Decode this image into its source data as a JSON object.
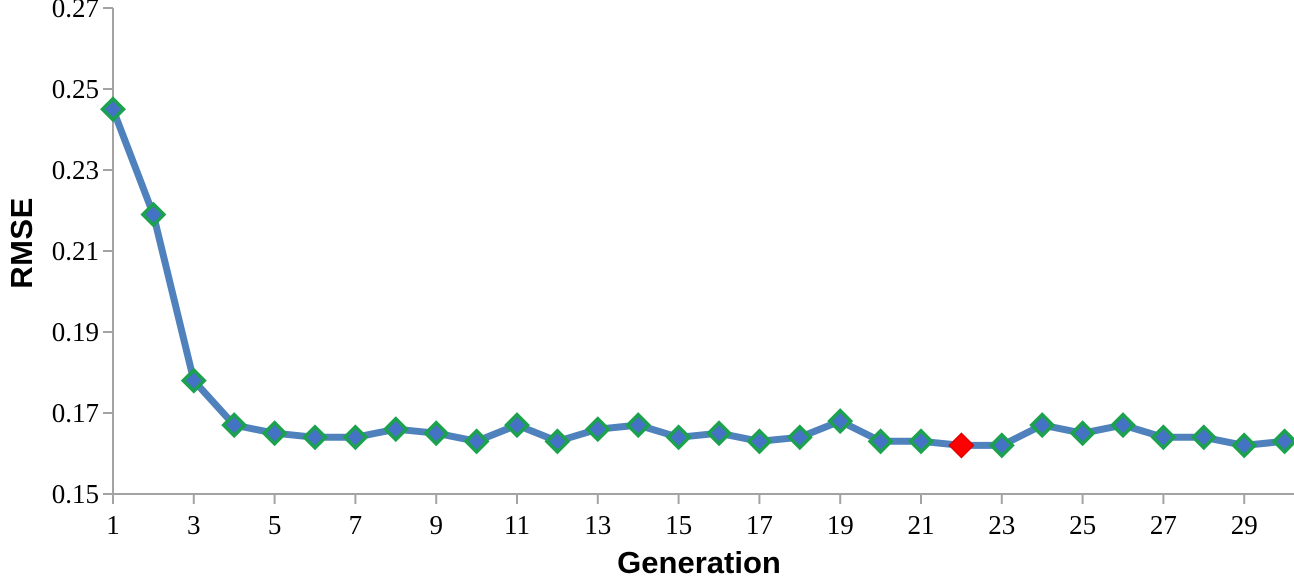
{
  "chart_data": {
    "type": "line",
    "title": "",
    "xlabel": "Generation",
    "ylabel": "RMSE",
    "x": [
      1,
      2,
      3,
      4,
      5,
      6,
      7,
      8,
      9,
      10,
      11,
      12,
      13,
      14,
      15,
      16,
      17,
      18,
      19,
      20,
      21,
      22,
      23,
      24,
      25,
      26,
      27,
      28,
      29,
      30
    ],
    "values": [
      0.245,
      0.219,
      0.178,
      0.167,
      0.165,
      0.164,
      0.164,
      0.166,
      0.165,
      0.163,
      0.167,
      0.163,
      0.166,
      0.167,
      0.164,
      0.165,
      0.163,
      0.164,
      0.168,
      0.163,
      0.163,
      0.162,
      0.162,
      0.167,
      0.165,
      0.167,
      0.164,
      0.164,
      0.162,
      0.163
    ],
    "highlight_x": 22,
    "highlight_value": 0.162,
    "highlight_meaning": "red diamond marker at generation 22",
    "ylim": [
      0.15,
      0.27
    ],
    "ytick_labels": [
      "0.15",
      "0.17",
      "0.19",
      "0.21",
      "0.23",
      "0.25",
      "0.27"
    ],
    "xticks": [
      1,
      3,
      5,
      7,
      9,
      11,
      13,
      15,
      17,
      19,
      21,
      23,
      25,
      27,
      29
    ],
    "grid": false,
    "legend": "none",
    "colors": {
      "line": "#4f81bd",
      "marker_fill": "#4472c4",
      "marker_edge": "#1ca24f",
      "highlight_fill": "#fe0000",
      "highlight_edge": "#e00000",
      "axis": "#a3a3a3",
      "tick_text": "#000000"
    }
  }
}
